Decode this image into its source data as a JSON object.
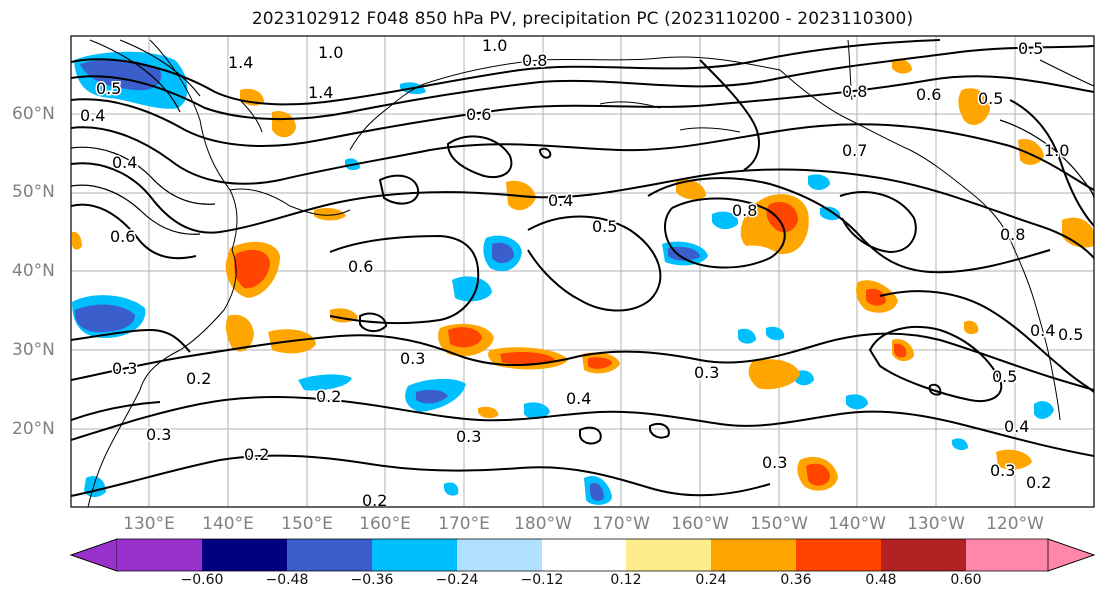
{
  "title": "2023102912 F048 850 hPa PV, precipitation PC (2023110200 - 2023110300)",
  "lat_labels": [
    "60°N",
    "50°N",
    "40°N",
    "30°N",
    "20°N"
  ],
  "lon_labels": [
    "130°E",
    "140°E",
    "150°E",
    "160°E",
    "170°E",
    "180°W",
    "170°W",
    "160°W",
    "150°W",
    "140°W",
    "130°W",
    "120°W"
  ],
  "contour_labels": [
    "1.4",
    "1.0",
    "1.0",
    "0.8",
    "0.5",
    "0.4",
    "1.4",
    "0.6",
    "0.8",
    "0.6",
    "0.5",
    "0.5",
    "0.4",
    "0.6",
    "0.4",
    "0.5",
    "0.8",
    "0.7",
    "1.0",
    "0.8",
    "0.6",
    "0.3",
    "0.2",
    "0.3",
    "0.2",
    "0.3",
    "0.4",
    "0.3",
    "0.5",
    "0.4",
    "0.3",
    "0.2",
    "0.2",
    "0.3",
    "0.4",
    "0.5",
    "0.3",
    "0.2"
  ],
  "colorbar": {
    "colors": [
      "#9932cc",
      "#000080",
      "#3a5fcd",
      "#00bfff",
      "#b0e2ff",
      "#ffffff",
      "#ffec8b",
      "#ffa500",
      "#ff4500",
      "#b22222",
      "#ff88aa"
    ],
    "tick_labels": [
      "−0.60",
      "−0.48",
      "−0.36",
      "−0.24",
      "−0.12",
      "0.12",
      "0.24",
      "0.36",
      "0.48",
      "0.60"
    ]
  }
}
